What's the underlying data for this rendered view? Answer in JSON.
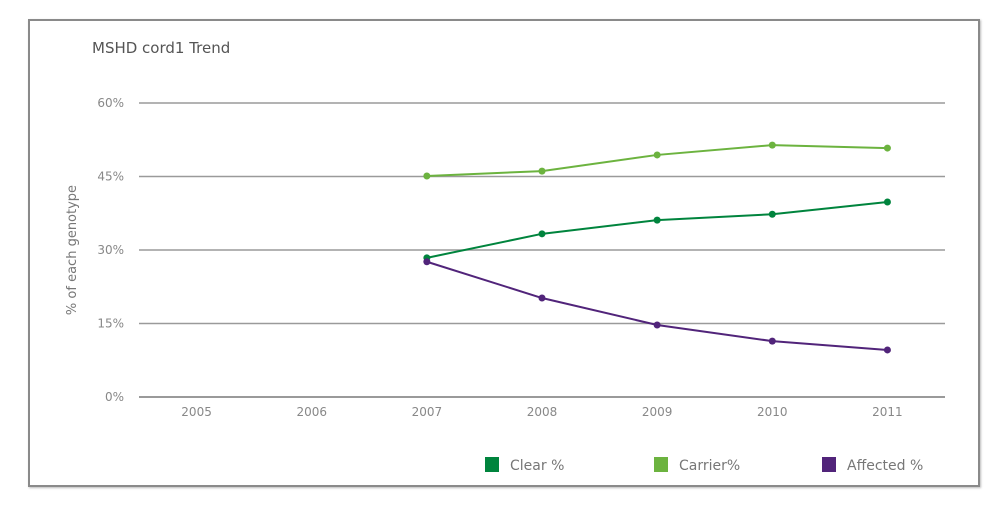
{
  "chart_data": {
    "type": "line",
    "title": "MSHD cord1 Trend",
    "xlabel": "",
    "ylabel": "% of each genotype",
    "categories": [
      "2005",
      "2006",
      "2007",
      "2008",
      "2009",
      "2010",
      "2011"
    ],
    "yticks": [
      "0%",
      "15%",
      "30%",
      "45%",
      "60%"
    ],
    "ylim": [
      0,
      60
    ],
    "grid": true,
    "legend_position": "bottom-right",
    "series": [
      {
        "name": "Clear %",
        "color": "#00843d",
        "values": [
          null,
          null,
          28.4,
          33.3,
          36.1,
          37.3,
          39.8
        ]
      },
      {
        "name": "Carrier%",
        "color": "#6cb33f",
        "values": [
          null,
          null,
          45.1,
          46.1,
          49.4,
          51.4,
          50.8
        ]
      },
      {
        "name": "Affected %",
        "color": "#51247a",
        "values": [
          null,
          null,
          27.6,
          20.2,
          14.7,
          11.4,
          9.6
        ]
      }
    ]
  }
}
